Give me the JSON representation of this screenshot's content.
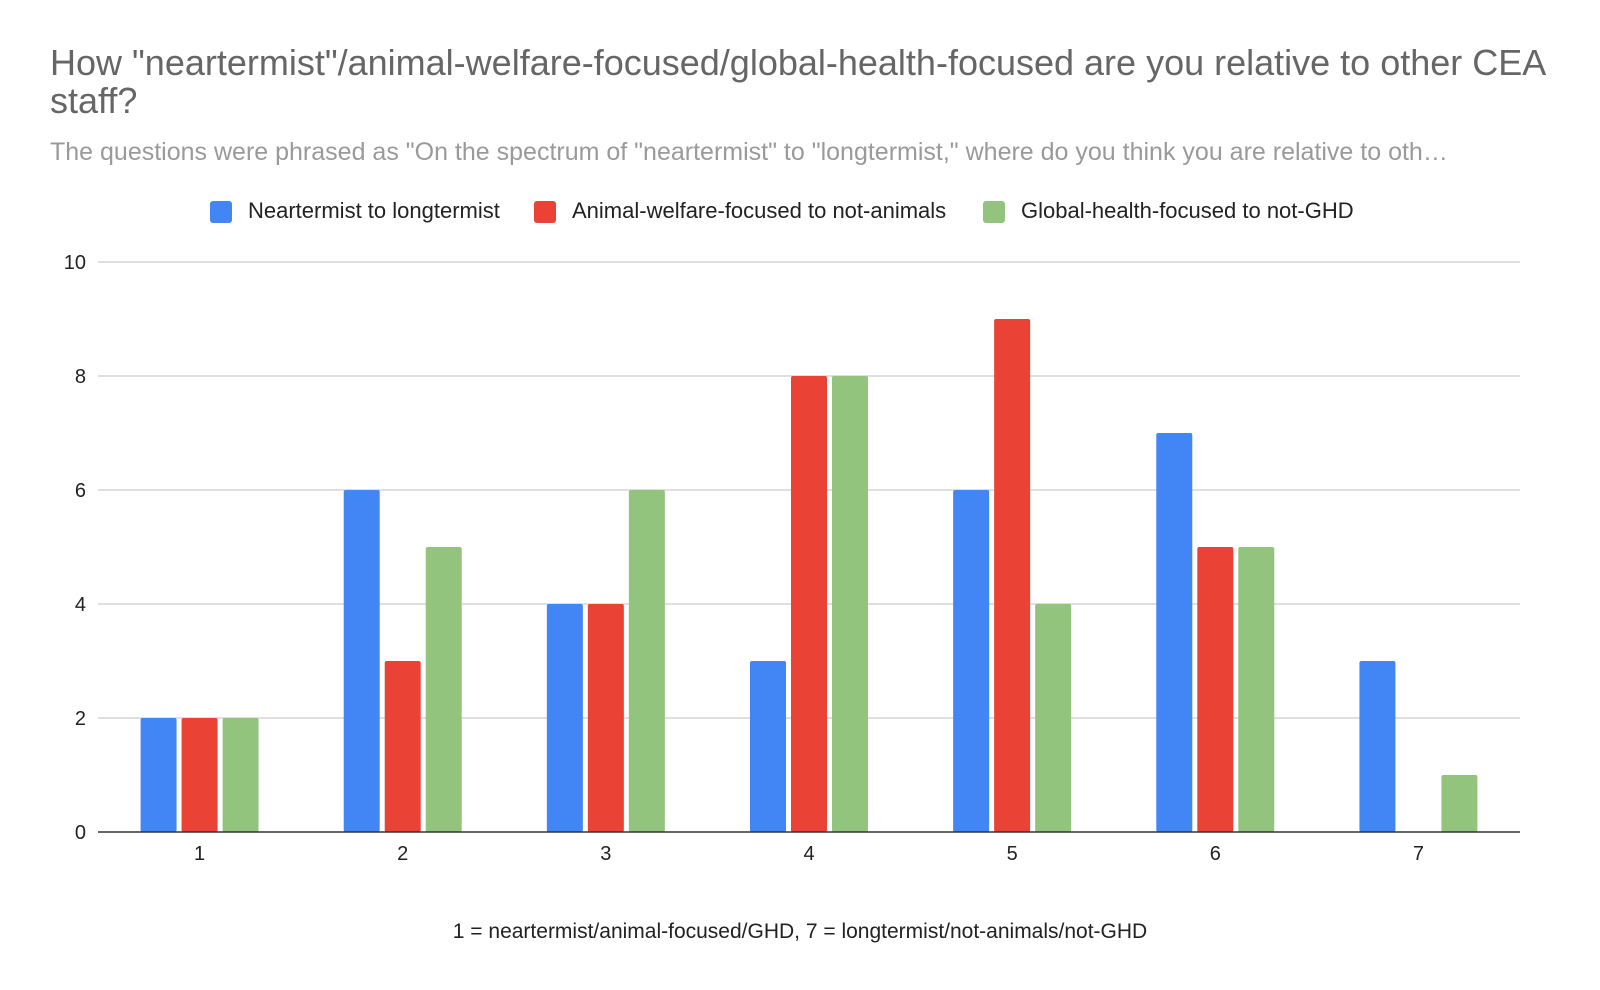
{
  "chart_data": {
    "type": "bar",
    "title": "How \"neartermist\"/animal-welfare-focused/global-health-focused are you relative to other CEA staff?",
    "subtitle": "The questions were phrased as \"On the spectrum of \"neartermist\" to \"longtermist,\" where do you think you are relative to oth…",
    "xlabel": "1 = neartermist/animal-focused/GHD, 7 = longtermist/not-animals/not-GHD",
    "ylabel": "",
    "categories": [
      "1",
      "2",
      "3",
      "4",
      "5",
      "6",
      "7"
    ],
    "ylim": [
      0,
      10
    ],
    "yticks": [
      0,
      2,
      4,
      6,
      8,
      10
    ],
    "grid": true,
    "legend_position": "top",
    "series": [
      {
        "name": "Neartermist to longtermist",
        "color": "#4285f4",
        "values": [
          2,
          6,
          4,
          3,
          6,
          7,
          3
        ]
      },
      {
        "name": "Animal-welfare-focused to not-animals",
        "color": "#ea4335",
        "values": [
          2,
          3,
          4,
          8,
          9,
          5,
          0
        ]
      },
      {
        "name": "Global-health-focused to not-GHD",
        "color": "#93c47d",
        "values": [
          2,
          5,
          6,
          8,
          4,
          5,
          1
        ]
      }
    ]
  }
}
